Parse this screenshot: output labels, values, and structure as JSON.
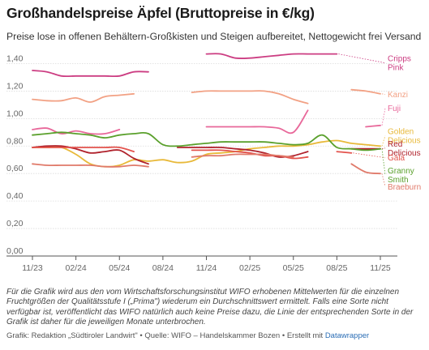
{
  "header": {
    "title": "Großhandelspreise Äpfel (Bruttopreise in €/kg)",
    "subtitle": "Preise lose in offenen Behältern-Großkisten und Steigen aufbereitet, Nettogewicht frei Versand"
  },
  "footer": {
    "notes": "Für die Grafik wird aus den vom Wirtschaftsforschungsinstitut WIFO erhobenen Mittelwerten für die einzelnen Fruchtgrößen der Qualitätsstufe I („Prima\") wiederum ein Durchschnittswert ermittelt. Falls eine Sorte nicht verfügbar ist, veröffentlicht das WIFO natürlich auch keine Preise dazu, die Linie der entsprechenden Sorte in der Grafik ist daher für die jeweiligen Monate unterbrochen.",
    "source_prefix": "Grafik: Redaktion „Südtiroler Landwirt\" • Quelle: WIFO – Handelskammer Bozen • Erstellt mit ",
    "source_link": "Datawrapper"
  },
  "chart_data": {
    "type": "line",
    "title": "Großhandelspreise Äpfel (Bruttopreise in €/kg)",
    "subtitle": "Preise lose in offenen Behältern-Großkisten und Steigen aufbereitet, Nettogewicht frei Versand",
    "xlabel": "",
    "ylabel": "",
    "x_start": "2023-11",
    "x_end": "2025-11",
    "x_ticks": [
      "11/23",
      "02/24",
      "05/24",
      "08/24",
      "11/24",
      "02/25",
      "05/25",
      "08/25",
      "11/25"
    ],
    "y_ticks": [
      "0,00",
      "0,20",
      "0,40",
      "0,60",
      "0,80",
      "1,00",
      "1,20",
      "1,40"
    ],
    "ylim": [
      0,
      1.45
    ],
    "grid": true,
    "legend": "direct-labels-right",
    "series": [
      {
        "name": "Cripps Pink",
        "color": "#cc3d82",
        "label_y": 1.405,
        "points": [
          [
            "2023-11",
            1.35
          ],
          [
            "2023-12",
            1.34
          ],
          [
            "2024-01",
            1.31
          ],
          [
            "2024-02",
            1.31
          ],
          [
            "2024-03",
            1.31
          ],
          [
            "2024-04",
            1.31
          ],
          [
            "2024-05",
            1.31
          ],
          [
            "2024-06",
            1.34
          ],
          [
            "2024-07",
            1.34
          ],
          null,
          [
            "2024-11",
            1.47
          ],
          [
            "2024-12",
            1.47
          ],
          [
            "2025-01",
            1.44
          ],
          [
            "2025-02",
            1.44
          ],
          [
            "2025-03",
            1.45
          ],
          [
            "2025-04",
            1.46
          ],
          [
            "2025-05",
            1.47
          ],
          [
            "2025-06",
            1.47
          ],
          [
            "2025-07",
            1.47
          ],
          [
            "2025-08",
            1.47
          ]
        ]
      },
      {
        "name": "Kanzi",
        "color": "#f2a184",
        "label_y": 1.175,
        "points": [
          [
            "2023-11",
            1.14
          ],
          [
            "2023-12",
            1.13
          ],
          [
            "2024-01",
            1.13
          ],
          [
            "2024-02",
            1.15
          ],
          [
            "2024-03",
            1.12
          ],
          [
            "2024-04",
            1.16
          ],
          [
            "2024-05",
            1.17
          ],
          [
            "2024-06",
            1.18
          ],
          null,
          [
            "2024-10",
            1.19
          ],
          [
            "2024-11",
            1.2
          ],
          [
            "2024-12",
            1.2
          ],
          [
            "2025-01",
            1.2
          ],
          [
            "2025-02",
            1.2
          ],
          [
            "2025-03",
            1.2
          ],
          [
            "2025-04",
            1.18
          ],
          [
            "2025-05",
            1.14
          ],
          [
            "2025-06",
            1.11
          ],
          null,
          [
            "2025-09",
            1.21
          ],
          [
            "2025-10",
            1.2
          ],
          [
            "2025-11",
            1.18
          ]
        ]
      },
      {
        "name": "Fuji",
        "color": "#e8689a",
        "label_y": 1.075,
        "points": [
          [
            "2023-11",
            0.92
          ],
          [
            "2023-12",
            0.93
          ],
          [
            "2024-01",
            0.89
          ],
          [
            "2024-02",
            0.91
          ],
          [
            "2024-03",
            0.89
          ],
          [
            "2024-04",
            0.89
          ],
          [
            "2024-05",
            0.92
          ],
          null,
          [
            "2024-11",
            0.94
          ],
          [
            "2024-12",
            0.94
          ],
          [
            "2025-01",
            0.94
          ],
          [
            "2025-02",
            0.94
          ],
          [
            "2025-03",
            0.94
          ],
          [
            "2025-04",
            0.93
          ],
          [
            "2025-05",
            0.9
          ],
          [
            "2025-06",
            1.06
          ],
          null,
          [
            "2025-10",
            0.94
          ],
          [
            "2025-11",
            0.95
          ]
        ]
      },
      {
        "name": "Golden Delicious",
        "color": "#e8b93a",
        "label_y": 0.875,
        "points": [
          [
            "2023-11",
            0.79
          ],
          [
            "2023-12",
            0.79
          ],
          [
            "2024-01",
            0.79
          ],
          [
            "2024-02",
            0.74
          ],
          [
            "2024-03",
            0.67
          ],
          [
            "2024-04",
            0.65
          ],
          [
            "2024-05",
            0.66
          ],
          [
            "2024-06",
            0.7
          ],
          [
            "2024-07",
            0.69
          ],
          [
            "2024-08",
            0.7
          ],
          [
            "2024-09",
            0.68
          ],
          [
            "2024-10",
            0.69
          ],
          [
            "2024-11",
            0.74
          ],
          [
            "2024-12",
            0.75
          ],
          [
            "2025-01",
            0.76
          ],
          [
            "2025-02",
            0.78
          ],
          [
            "2025-03",
            0.79
          ],
          [
            "2025-04",
            0.8
          ],
          [
            "2025-05",
            0.8
          ],
          [
            "2025-06",
            0.81
          ],
          [
            "2025-07",
            0.83
          ],
          [
            "2025-08",
            0.84
          ],
          [
            "2025-09",
            0.82
          ],
          [
            "2025-10",
            0.81
          ],
          [
            "2025-11",
            0.8
          ]
        ]
      },
      {
        "name": "Red Delicious",
        "color": "#b0222c",
        "label_y": 0.785,
        "points": [
          [
            "2023-11",
            0.79
          ],
          [
            "2023-12",
            0.8
          ],
          [
            "2024-01",
            0.8
          ],
          [
            "2024-02",
            0.78
          ],
          [
            "2024-03",
            0.75
          ],
          [
            "2024-04",
            0.76
          ],
          [
            "2024-05",
            0.77
          ],
          [
            "2024-06",
            0.71
          ],
          [
            "2024-07",
            0.67
          ],
          null,
          [
            "2024-09",
            0.79
          ],
          [
            "2024-10",
            0.79
          ],
          [
            "2024-11",
            0.79
          ],
          [
            "2024-12",
            0.79
          ],
          [
            "2025-01",
            0.78
          ],
          [
            "2025-02",
            0.77
          ],
          [
            "2025-03",
            0.75
          ],
          [
            "2025-04",
            0.72
          ],
          [
            "2025-05",
            0.73
          ],
          [
            "2025-06",
            0.76
          ],
          null,
          [
            "2025-09",
            0.78
          ],
          [
            "2025-10",
            0.78
          ],
          [
            "2025-11",
            0.78
          ]
        ]
      },
      {
        "name": "Gala",
        "color": "#e3534d",
        "label_y": 0.715,
        "points": [
          [
            "2023-11",
            0.79
          ],
          [
            "2023-12",
            0.79
          ],
          [
            "2024-01",
            0.79
          ],
          [
            "2024-02",
            0.79
          ],
          [
            "2024-03",
            0.79
          ],
          [
            "2024-04",
            0.79
          ],
          [
            "2024-05",
            0.79
          ],
          [
            "2024-06",
            0.76
          ],
          null,
          [
            "2024-10",
            0.77
          ],
          [
            "2024-11",
            0.77
          ],
          [
            "2024-12",
            0.77
          ],
          [
            "2025-01",
            0.76
          ],
          [
            "2025-02",
            0.75
          ],
          [
            "2025-03",
            0.73
          ],
          [
            "2025-04",
            0.73
          ],
          [
            "2025-05",
            0.71
          ],
          [
            "2025-06",
            0.72
          ],
          null,
          [
            "2025-08",
            0.76
          ],
          [
            "2025-09",
            0.75
          ]
        ]
      },
      {
        "name": "Granny Smith",
        "color": "#5aa02c",
        "label_y": 0.59,
        "points": [
          [
            "2023-11",
            0.88
          ],
          [
            "2023-12",
            0.89
          ],
          [
            "2024-01",
            0.9
          ],
          [
            "2024-02",
            0.89
          ],
          [
            "2024-03",
            0.88
          ],
          [
            "2024-04",
            0.86
          ],
          [
            "2024-05",
            0.88
          ],
          [
            "2024-06",
            0.89
          ],
          [
            "2024-07",
            0.89
          ],
          [
            "2024-08",
            0.81
          ],
          [
            "2024-09",
            0.8
          ],
          [
            "2024-10",
            0.81
          ],
          [
            "2024-11",
            0.82
          ],
          [
            "2024-12",
            0.83
          ],
          [
            "2025-01",
            0.83
          ],
          [
            "2025-02",
            0.83
          ],
          [
            "2025-03",
            0.83
          ],
          [
            "2025-04",
            0.82
          ],
          [
            "2025-05",
            0.81
          ],
          [
            "2025-06",
            0.82
          ],
          [
            "2025-07",
            0.88
          ],
          [
            "2025-08",
            0.79
          ],
          [
            "2025-09",
            0.78
          ],
          [
            "2025-10",
            0.77
          ],
          [
            "2025-11",
            0.78
          ]
        ]
      },
      {
        "name": "Braeburn",
        "color": "#e07a6a",
        "label_y": 0.505,
        "points": [
          [
            "2023-11",
            0.67
          ],
          [
            "2023-12",
            0.66
          ],
          [
            "2024-01",
            0.66
          ],
          [
            "2024-02",
            0.66
          ],
          [
            "2024-03",
            0.66
          ],
          [
            "2024-04",
            0.65
          ],
          [
            "2024-05",
            0.65
          ],
          [
            "2024-06",
            0.66
          ],
          [
            "2024-07",
            0.65
          ],
          null,
          [
            "2024-10",
            0.72
          ],
          [
            "2024-11",
            0.73
          ],
          [
            "2024-12",
            0.73
          ],
          [
            "2025-01",
            0.74
          ],
          [
            "2025-02",
            0.74
          ],
          [
            "2025-03",
            0.74
          ],
          [
            "2025-04",
            0.73
          ],
          [
            "2025-05",
            0.72
          ],
          null,
          [
            "2025-09",
            0.67
          ],
          [
            "2025-10",
            0.61
          ],
          [
            "2025-11",
            0.6
          ]
        ]
      }
    ]
  }
}
